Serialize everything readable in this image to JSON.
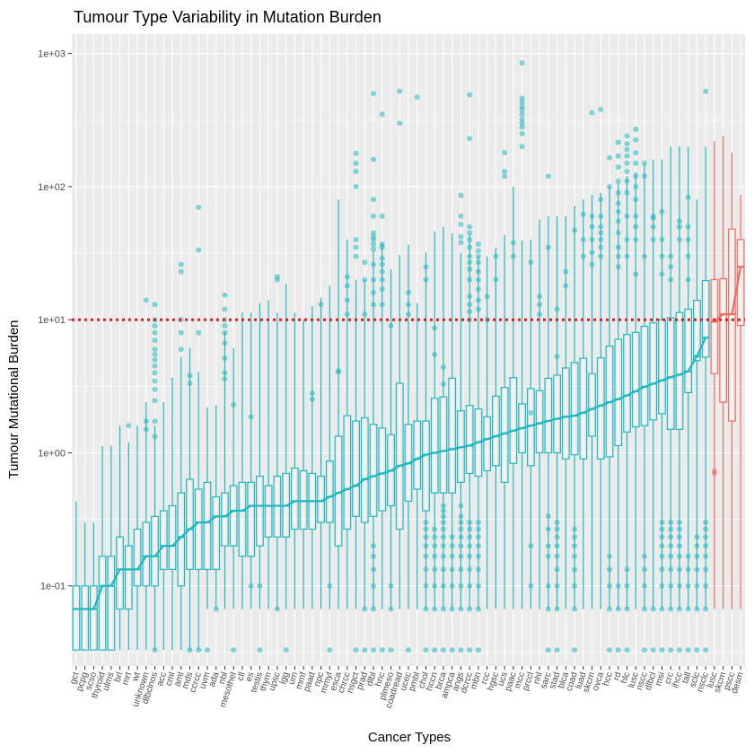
{
  "chart_data": {
    "type": "box",
    "title": "Tumour Type Variability in Mutation Burden",
    "xlabel": "Cancer Types",
    "ylabel": "Tumour Mutational Burden",
    "yscale": "log10",
    "ylim": [
      0.025,
      1400
    ],
    "yticks": [
      {
        "value": 0.1,
        "label": "1e-01"
      },
      {
        "value": 1,
        "label": "1e+00"
      },
      {
        "value": 10,
        "label": "1e+01"
      },
      {
        "value": 100,
        "label": "1e+02"
      },
      {
        "value": 1000,
        "label": "1e+03"
      }
    ],
    "reference_line": {
      "value": 10,
      "color": "#e41a1c",
      "style": "dotted"
    },
    "colors": {
      "normal": "#20b8bf",
      "high": "#f06b60",
      "panel": "#ebebeb",
      "grid": "#ffffff"
    },
    "median_line": true,
    "categories": [
      "gct",
      "pcpg",
      "scso",
      "thyroid",
      "ulms",
      "brl",
      "mrt",
      "wt",
      "unknown",
      "dlbclnos",
      "acc",
      "cml",
      "aml",
      "mds",
      "ccrcc",
      "uvm",
      "ada",
      "nbl",
      "mesothel",
      "cll",
      "es",
      "testis",
      "thym",
      "upsc",
      "lgg",
      "um",
      "mmf",
      "paad",
      "npc",
      "mmyl",
      "esca",
      "chrcc",
      "nsgct",
      "prad",
      "dlbl",
      "hnc",
      "plmeso",
      "coadread",
      "ucec",
      "pmbl",
      "chol",
      "hccn",
      "brca",
      "ampca",
      "angs",
      "dcrcc",
      "mbn",
      "rcc",
      "hgsc",
      "ucs",
      "paac",
      "mcc",
      "prccl",
      "nhl",
      "sarc",
      "stad",
      "blca",
      "coad",
      "luad",
      "skcm",
      "ovca",
      "hcc",
      "rd",
      "hlc",
      "lusc",
      "nscc",
      "dlbcl",
      "msi",
      "crc",
      "ihcc",
      "tall",
      "sclc",
      "nsclc",
      "lusc",
      "skcm",
      "pscc",
      "desm"
    ],
    "groups": [
      "normal",
      "normal",
      "normal",
      "normal",
      "normal",
      "normal",
      "normal",
      "normal",
      "normal",
      "normal",
      "normal",
      "normal",
      "normal",
      "normal",
      "normal",
      "normal",
      "normal",
      "normal",
      "normal",
      "normal",
      "normal",
      "normal",
      "normal",
      "normal",
      "normal",
      "normal",
      "normal",
      "normal",
      "normal",
      "normal",
      "normal",
      "normal",
      "normal",
      "normal",
      "normal",
      "normal",
      "normal",
      "normal",
      "normal",
      "normal",
      "normal",
      "normal",
      "normal",
      "normal",
      "normal",
      "normal",
      "normal",
      "normal",
      "normal",
      "normal",
      "normal",
      "normal",
      "normal",
      "normal",
      "normal",
      "normal",
      "normal",
      "normal",
      "normal",
      "normal",
      "normal",
      "normal",
      "normal",
      "normal",
      "normal",
      "normal",
      "normal",
      "normal",
      "normal",
      "normal",
      "normal",
      "normal",
      "normal",
      "high",
      "high",
      "high",
      "high"
    ],
    "medians": [
      0.067,
      0.067,
      0.067,
      0.1,
      0.1,
      0.133,
      0.133,
      0.133,
      0.167,
      0.167,
      0.2,
      0.2,
      0.233,
      0.267,
      0.3,
      0.3,
      0.333,
      0.333,
      0.367,
      0.367,
      0.4,
      0.4,
      0.4,
      0.4,
      0.4,
      0.433,
      0.433,
      0.433,
      0.433,
      0.467,
      0.5,
      0.533,
      0.567,
      0.633,
      0.667,
      0.7,
      0.733,
      0.8,
      0.833,
      0.9,
      0.967,
      1.0,
      1.033,
      1.067,
      1.1,
      1.133,
      1.2,
      1.267,
      1.333,
      1.4,
      1.467,
      1.533,
      1.6,
      1.667,
      1.733,
      1.8,
      1.867,
      1.9,
      2.0,
      2.133,
      2.267,
      2.4,
      2.533,
      2.7,
      2.9,
      3.133,
      3.3,
      3.5,
      3.7,
      3.867,
      4.1,
      5.333,
      7.333,
      9.667,
      11.0,
      11.0,
      25.0
    ],
    "q1": [
      0.033,
      0.033,
      0.033,
      0.033,
      0.033,
      0.067,
      0.067,
      0.1,
      0.1,
      0.1,
      0.133,
      0.133,
      0.1,
      0.133,
      0.133,
      0.133,
      0.133,
      0.2,
      0.2,
      0.167,
      0.167,
      0.2,
      0.233,
      0.233,
      0.233,
      0.267,
      0.267,
      0.267,
      0.3,
      0.3,
      0.2,
      0.267,
      0.333,
      0.3,
      0.333,
      0.367,
      0.4,
      0.267,
      0.433,
      0.533,
      0.367,
      0.5,
      0.5,
      0.5,
      0.6,
      0.7,
      0.667,
      0.733,
      0.8,
      0.6,
      0.833,
      1.0,
      0.8,
      1.0,
      1.0,
      1.0,
      0.9,
      0.967,
      0.9,
      1.333,
      0.9,
      0.933,
      1.133,
      1.433,
      1.567,
      1.6,
      1.767,
      1.967,
      1.5,
      1.5,
      2.833,
      4.933,
      5.233,
      3.933,
      2.4,
      1.733,
      9.067
    ],
    "q3": [
      0.1,
      0.1,
      0.1,
      0.167,
      0.167,
      0.233,
      0.2,
      0.267,
      0.3,
      0.333,
      0.367,
      0.4,
      0.5,
      0.633,
      0.533,
      0.6,
      0.467,
      0.5,
      0.567,
      0.6,
      0.6,
      0.667,
      0.567,
      0.667,
      0.7,
      0.767,
      0.733,
      0.7,
      0.667,
      0.867,
      1.333,
      1.9,
      1.733,
      1.833,
      1.633,
      1.533,
      1.367,
      3.333,
      1.633,
      1.733,
      1.733,
      2.567,
      2.633,
      3.633,
      2.067,
      2.267,
      2.133,
      1.867,
      2.667,
      3.1,
      3.667,
      2.333,
      3.033,
      2.933,
      3.633,
      3.833,
      4.333,
      4.767,
      5.133,
      3.933,
      5.167,
      6.333,
      7.133,
      7.733,
      8.033,
      8.933,
      9.467,
      10.0,
      10.333,
      11.333,
      12.0,
      14.0,
      19.667,
      20.0,
      20.333,
      48.0,
      40.0
    ],
    "whisker_low": [
      0.033,
      0.033,
      0.033,
      0.033,
      0.033,
      0.033,
      0.033,
      0.033,
      0.033,
      0.033,
      0.033,
      0.033,
      0.033,
      0.033,
      0.033,
      0.067,
      0.067,
      0.067,
      0.067,
      0.067,
      0.067,
      0.067,
      0.067,
      0.067,
      0.067,
      0.067,
      0.067,
      0.067,
      0.067,
      0.067,
      0.067,
      0.067,
      0.067,
      0.067,
      0.067,
      0.067,
      0.067,
      0.067,
      0.067,
      0.067,
      0.067,
      0.067,
      0.067,
      0.067,
      0.067,
      0.067,
      0.067,
      0.067,
      0.067,
      0.067,
      0.067,
      0.067,
      0.067,
      0.067,
      0.067,
      0.067,
      0.067,
      0.067,
      0.067,
      0.067,
      0.067,
      0.067,
      0.067,
      0.067,
      0.067,
      0.067,
      0.067,
      0.067,
      0.067,
      0.067,
      0.067,
      0.067,
      0.067,
      0.067,
      0.067,
      0.067,
      0.067
    ],
    "whisker_high": [
      0.43,
      0.3,
      0.3,
      1.13,
      1.13,
      1.6,
      1.2,
      1.6,
      2.4,
      1.6,
      2.4,
      3.67,
      5.27,
      6.13,
      4.07,
      2.2,
      2.27,
      8.13,
      6.13,
      11.33,
      11.3,
      13.33,
      14.0,
      11.3,
      18.67,
      11.3,
      10.0,
      12.67,
      14.67,
      18.0,
      80.0,
      40.0,
      20.0,
      20.0,
      33.33,
      37.33,
      24.0,
      30.67,
      36.67,
      13.33,
      32.0,
      46.0,
      50.0,
      44.67,
      31.67,
      44.0,
      30.0,
      30.0,
      34.67,
      43.33,
      100.0,
      39.33,
      40.0,
      56.67,
      60.0,
      60.0,
      60.0,
      72.0,
      80.0,
      86.67,
      90.0,
      100.0,
      106.67,
      120.0,
      128.0,
      146.67,
      160.0,
      160.0,
      200.0,
      200.0,
      200.0,
      80.0,
      200.0,
      220.0,
      240.0,
      180.0,
      86.67
    ],
    "outliers_high": [
      [],
      [],
      [],
      [],
      [],
      [],
      [
        1.6
      ],
      [],
      [
        1.5,
        1.73,
        14.0
      ],
      [
        1.33,
        1.73,
        2.47,
        3.0,
        3.47,
        4.0,
        4.5,
        5.0,
        5.5,
        6.0,
        7.0,
        8.0,
        9.0,
        10.0,
        13.0
      ],
      [],
      [],
      [
        6.0,
        8.0,
        10.0,
        23.0,
        26.0
      ],
      [
        3.33,
        3.8
      ],
      [
        8.0,
        33.33,
        70.0
      ],
      [],
      [],
      [
        3.6,
        4.0,
        5.13,
        6.67,
        8.0,
        9.0,
        10.0,
        12.0,
        15.33
      ],
      [
        2.3
      ],
      [],
      [
        1.86
      ],
      [],
      [],
      [
        20.0,
        21.0
      ],
      [],
      [],
      [],
      [
        2.53,
        2.8
      ],
      [
        13.0
      ],
      [],
      [
        4.07,
        4.13
      ],
      [
        11.0,
        14.0,
        18.0,
        21.0
      ],
      [
        30.0,
        35.0,
        40.0,
        100.0,
        130.0,
        150.0,
        178.0
      ],
      [
        11.0,
        20.0,
        27.0
      ],
      [
        13.0,
        16.0,
        20.0,
        26.0,
        34.0,
        37.0,
        40.0,
        42.0,
        45.0,
        60.0,
        80.0,
        160.0,
        500.0
      ],
      [
        13.0,
        17.0,
        20.0,
        23.0,
        26.0,
        29.0,
        35.0,
        37.0,
        60.0,
        350.0
      ],
      [
        9.0
      ],
      [
        300.0,
        520.0
      ],
      [
        11.0,
        13.0,
        16.0
      ],
      [
        470.0
      ],
      [
        20.0,
        25.0
      ],
      [
        8.67,
        5.47
      ],
      [
        4.4,
        3.27
      ],
      [],
      [
        38.0,
        42.0,
        52.0,
        60.0,
        86.0
      ],
      [
        10.0,
        11.5,
        13.0,
        15.0,
        20.0,
        24.0,
        27.0,
        30.0,
        35.0,
        40.0,
        45.0,
        50.0,
        230.0,
        490.0
      ],
      [
        12.0,
        14.0,
        17.0,
        20.0,
        23.0,
        27.0,
        30.0,
        33.0,
        37.0
      ],
      [
        10.0,
        15.0
      ],
      [
        20.0,
        30.0
      ],
      [
        120.0,
        130.0,
        180.0
      ],
      [
        30.0,
        38.0
      ],
      [
        200.0,
        250.0,
        280.0,
        300.0,
        320.0,
        350.0,
        380.0,
        400.0,
        430.0,
        460.0,
        850.0
      ],
      [
        27.0,
        2.0
      ],
      [
        11.0,
        13.0,
        15.0
      ],
      [
        120.0,
        35.0
      ],
      [
        5.3,
        12.0
      ],
      [
        23.0,
        18.0
      ],
      [
        47.0
      ],
      [
        62.0,
        30.0,
        40.0
      ],
      [
        26.0,
        32.0,
        40.0,
        50.0,
        60.0,
        360.0
      ],
      [
        30.0,
        35.0,
        40.0,
        45.0,
        50.0,
        60.0,
        80.0,
        380.0
      ],
      [
        165.0,
        100.0
      ],
      [
        25.0,
        30.0,
        35.0,
        45.0,
        55.0,
        65.0,
        75.0,
        90.0,
        110.0,
        140.0,
        170.0,
        215.0
      ],
      [
        30.0,
        40.0,
        60.0,
        90.0,
        110.0,
        130.0,
        150.0,
        170.0,
        190.0,
        210.0,
        240.0
      ],
      [
        22.0,
        40.0,
        50.0,
        60.0,
        80.0,
        100.0,
        120.0,
        150.0,
        180.0,
        225.0,
        270.0
      ],
      [
        150.0,
        120.0,
        30.0
      ],
      [
        58.0,
        40.0,
        50.0,
        60.0
      ],
      [
        22.0,
        30.0,
        40.0,
        65.0
      ],
      [
        20.0,
        25.0,
        30.0
      ],
      [
        40.0,
        50.0,
        55.0
      ],
      [
        20.0,
        30.0,
        40.0,
        50.0,
        83.0
      ],
      [],
      [
        520.0
      ],
      [],
      [],
      []
    ],
    "outliers_low": [
      [],
      [],
      [],
      [],
      [],
      [],
      [],
      [],
      [],
      [
        0.033
      ],
      [],
      [],
      [],
      [
        0.033
      ],
      [
        0.033
      ],
      [
        0.033
      ],
      [
        0.067
      ],
      [],
      [
        0.033
      ],
      [],
      [
        0.1
      ],
      [
        0.1,
        0.033
      ],
      [],
      [
        0.067
      ],
      [
        0.033
      ],
      [],
      [],
      [],
      [],
      [
        0.033,
        0.1
      ],
      [],
      [],
      [
        0.033
      ],
      [
        0.033,
        0.067
      ],
      [
        0.033,
        0.067,
        0.1,
        0.133,
        0.167,
        0.2
      ],
      [
        0.033
      ],
      [
        0.033,
        0.067,
        0.1
      ],
      [],
      [
        0.033
      ],
      [],
      [
        0.033,
        0.067,
        0.1,
        0.133,
        0.167,
        0.2,
        0.233,
        0.267,
        0.3
      ],
      [
        0.033,
        0.067,
        0.1,
        0.133,
        0.167,
        0.2,
        0.233,
        0.267
      ],
      [
        0.033,
        0.067,
        0.1,
        0.133,
        0.167,
        0.2,
        0.233,
        0.267,
        0.3,
        0.333,
        0.367,
        0.4
      ],
      [
        0.033,
        0.067,
        0.1,
        0.133,
        0.167,
        0.2,
        0.233
      ],
      [
        0.033,
        0.067,
        0.1,
        0.133,
        0.167,
        0.2,
        0.233,
        0.267,
        0.3,
        0.333,
        0.4
      ],
      [
        0.033,
        0.067,
        0.1,
        0.133,
        0.167,
        0.2,
        0.233,
        0.267,
        0.3
      ],
      [
        0.033,
        0.067,
        0.1,
        0.133,
        0.167,
        0.2,
        0.233,
        0.267,
        0.3
      ],
      [],
      [],
      [],
      [],
      [],
      [
        0.1,
        0.2
      ],
      [],
      [
        0.033,
        0.067,
        0.1,
        0.167,
        0.2,
        0.267,
        0.333
      ],
      [
        0.033,
        0.067,
        0.1,
        0.133,
        0.167,
        0.2,
        0.233,
        0.267,
        0.3
      ],
      [],
      [
        0.033,
        0.067,
        0.1,
        0.133,
        0.167,
        0.2,
        0.233,
        0.267
      ],
      [],
      [],
      [],
      [
        0.033,
        0.067,
        0.1,
        0.133,
        0.167
      ],
      [
        0.033,
        0.067,
        0.1
      ],
      [
        0.033,
        0.067,
        0.1,
        0.133
      ],
      [],
      [
        0.033,
        0.067,
        0.1,
        0.133,
        0.167
      ],
      [
        0.033,
        0.067
      ],
      [
        0.033,
        0.067,
        0.1,
        0.133,
        0.167,
        0.2,
        0.233,
        0.267,
        0.3
      ],
      [
        0.033,
        0.067,
        0.1,
        0.133,
        0.167,
        0.2,
        0.233,
        0.267,
        0.3
      ],
      [
        0.033,
        0.067,
        0.1,
        0.133,
        0.167,
        0.2,
        0.233,
        0.267,
        0.3
      ],
      [
        0.033,
        0.067,
        0.1,
        0.133,
        0.167
      ],
      [
        0.033,
        0.067,
        0.1,
        0.133,
        0.167,
        0.2,
        0.233
      ],
      [
        0.033,
        0.067,
        0.1,
        0.133,
        0.167,
        0.2,
        0.233,
        0.267,
        0.3
      ],
      [
        0.7,
        0.73
      ]
    ],
    "legend": "none"
  }
}
